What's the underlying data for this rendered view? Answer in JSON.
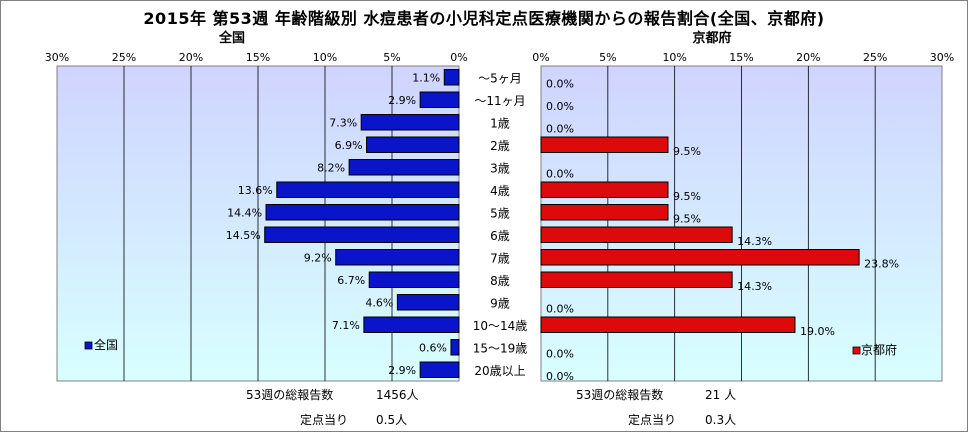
{
  "title": "2015年 第53週 年齢階級別 水痘患者の小児科定点医療機関からの報告割合(全国、京都府)",
  "colors": {
    "national_bar": "#0a14c8",
    "kyoto_bar": "#dc0a0a",
    "plot_top": "#cfd4ff",
    "plot_bottom": "#d8ffff",
    "grid": "#000000"
  },
  "chart_data": [
    {
      "type": "bar",
      "orientation": "horizontal-left",
      "panel_title": "全国",
      "legend": "全国",
      "legend_position": "bottom-left",
      "categories": [
        "～5ヶ月",
        "～11ヶ月",
        "1歳",
        "2歳",
        "3歳",
        "4歳",
        "5歳",
        "6歳",
        "7歳",
        "8歳",
        "9歳",
        "10～14歳",
        "15～19歳",
        "20歳以上"
      ],
      "values": [
        1.1,
        2.9,
        7.3,
        6.9,
        8.2,
        13.6,
        14.4,
        14.5,
        9.2,
        6.7,
        4.6,
        7.1,
        0.6,
        2.9
      ],
      "value_labels": [
        "1.1%",
        "2.9%",
        "7.3%",
        "6.9%",
        "8.2%",
        "13.6%",
        "14.4%",
        "14.5%",
        "9.2%",
        "6.7%",
        "4.6%",
        "7.1%",
        "0.6%",
        "2.9%"
      ],
      "xlim": [
        0,
        30
      ],
      "ticks": [
        "0%",
        "5%",
        "10%",
        "15%",
        "20%",
        "25%",
        "30%"
      ],
      "grid": true
    },
    {
      "type": "bar",
      "orientation": "horizontal-right",
      "panel_title": "京都府",
      "legend": "京都府",
      "legend_position": "bottom-right",
      "categories": [
        "～5ヶ月",
        "～11ヶ月",
        "1歳",
        "2歳",
        "3歳",
        "4歳",
        "5歳",
        "6歳",
        "7歳",
        "8歳",
        "9歳",
        "10～14歳",
        "15～19歳",
        "20歳以上"
      ],
      "values": [
        0.0,
        0.0,
        0.0,
        9.5,
        0.0,
        9.5,
        9.5,
        14.3,
        23.8,
        14.3,
        0.0,
        19.0,
        0.0,
        0.0
      ],
      "value_labels": [
        "0.0%",
        "0.0%",
        "0.0%",
        "9.5%",
        "0.0%",
        "9.5%",
        "9.5%",
        "14.3%",
        "23.8%",
        "14.3%",
        "0.0%",
        "19.0%",
        "0.0%",
        "0.0%"
      ],
      "xlim": [
        0,
        30
      ],
      "ticks": [
        "0%",
        "5%",
        "10%",
        "15%",
        "20%",
        "25%",
        "30%"
      ],
      "grid": true
    }
  ],
  "stats": {
    "national": {
      "total_label": "53週の総報告数",
      "total_value": "1456人",
      "per_site_label": "定点当り",
      "per_site_value": "0.5人"
    },
    "kyoto": {
      "total_label": "53週の総報告数",
      "total_value": "21 人",
      "per_site_label": "定点当り",
      "per_site_value": "0.3人"
    }
  }
}
